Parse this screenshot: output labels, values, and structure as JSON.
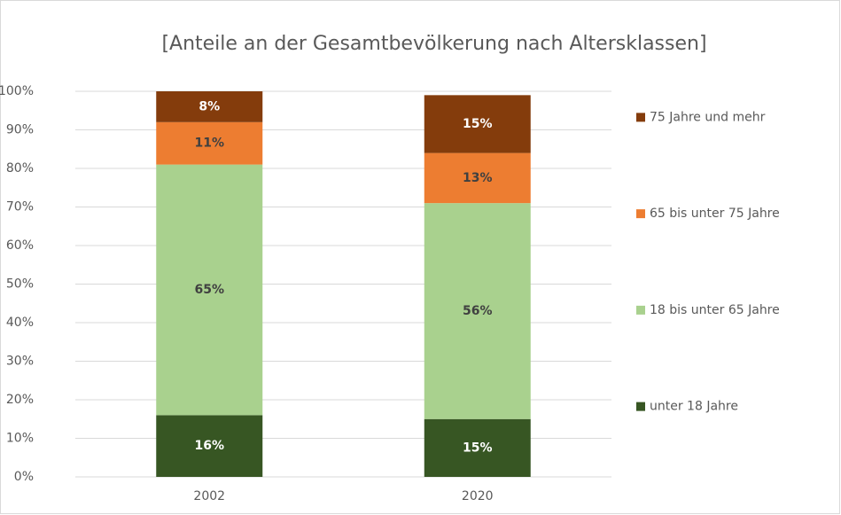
{
  "chart_data": {
    "type": "stacked_bar",
    "title": "[Anteile an der Gesamtbevölkerung nach Altersklassen]",
    "categories": [
      "2002",
      "2020"
    ],
    "series": [
      {
        "name": "unter 18 Jahre",
        "color": "#375623",
        "label_color": "#ffffff",
        "values": [
          16,
          15
        ],
        "value_labels": [
          "16%",
          "15%"
        ]
      },
      {
        "name": "18 bis unter 65 Jahre",
        "color": "#a9d18e",
        "label_color": "#404040",
        "values": [
          65,
          56
        ],
        "value_labels": [
          "65%",
          "56%"
        ]
      },
      {
        "name": "65 bis unter 75 Jahre",
        "color": "#ed7d31",
        "label_color": "#404040",
        "values": [
          11,
          13
        ],
        "value_labels": [
          "11%",
          "13%"
        ]
      },
      {
        "name": "75 Jahre und mehr",
        "color": "#843c0c",
        "label_color": "#ffffff",
        "values": [
          8,
          15
        ],
        "value_labels": [
          "8%",
          "15%"
        ]
      }
    ],
    "ylim": [
      0,
      100
    ],
    "yticks": [
      {
        "value": 0,
        "label": "0%"
      },
      {
        "value": 10,
        "label": "10%"
      },
      {
        "value": 20,
        "label": "20%"
      },
      {
        "value": 30,
        "label": "30%"
      },
      {
        "value": 40,
        "label": "40%"
      },
      {
        "value": 50,
        "label": "50%"
      },
      {
        "value": 60,
        "label": "60%"
      },
      {
        "value": 70,
        "label": "70%"
      },
      {
        "value": 80,
        "label": "80%"
      },
      {
        "value": 90,
        "label": "90%"
      },
      {
        "value": 100,
        "label": "100%"
      }
    ],
    "grid": true,
    "legend": "right"
  }
}
